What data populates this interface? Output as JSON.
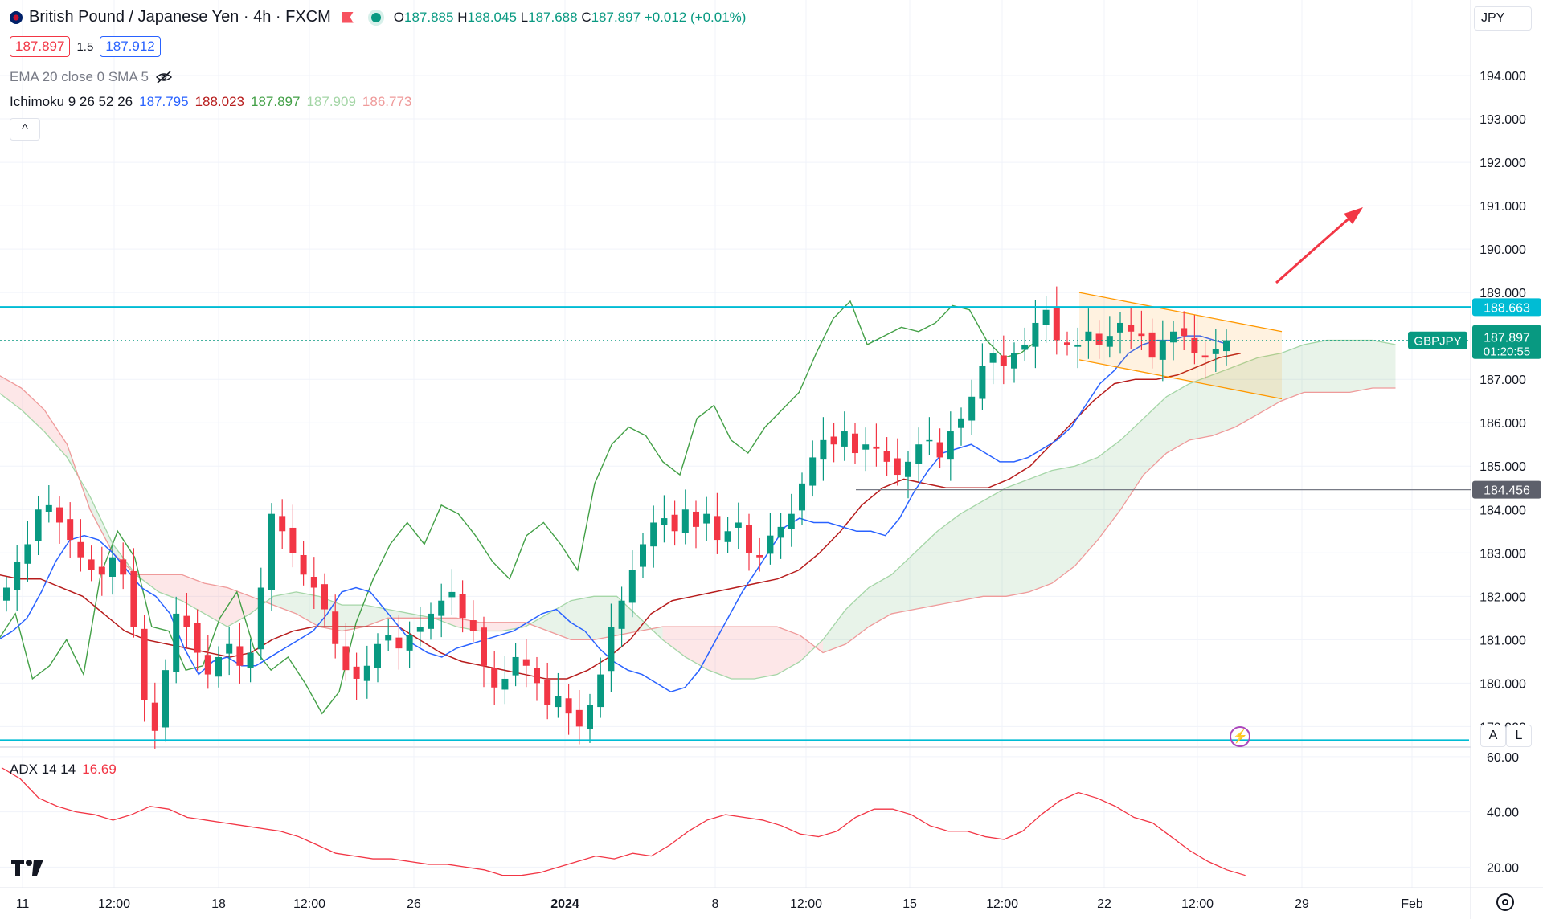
{
  "header": {
    "title": "British Pound / Japanese Yen · 4h · FXCM",
    "ohlc": {
      "o_label": "O",
      "o": "187.885",
      "h_label": "H",
      "h": "188.045",
      "l_label": "L",
      "l": "187.688",
      "c_label": "C",
      "c": "187.897",
      "change": "+0.012 (+0.01%)"
    },
    "bid": "187.897",
    "spread": "1.5",
    "ask": "187.912",
    "currency": "JPY"
  },
  "indicators": {
    "ema": {
      "label": "EMA 20 close 0 SMA 5"
    },
    "ichimoku": {
      "label": "Ichimoku 9 26 52 26",
      "values": [
        "187.795",
        "188.023",
        "187.897",
        "187.909",
        "186.773"
      ]
    },
    "adx": {
      "label": "ADX 14 14",
      "value": "16.69"
    }
  },
  "colors": {
    "tenkan": "#2962ff",
    "kijun": "#b71c1c",
    "chikou": "#43a047",
    "span_a": "#a5d6a7",
    "span_b": "#ef9a9a",
    "bull": "#089981",
    "bear": "#f23645",
    "hline": "#00bcd4",
    "channel": "#ff9800",
    "adx": "#f23645",
    "arrow": "#f23645"
  },
  "chart_data": {
    "type": "candlestick",
    "symbol": "GBPJPY",
    "timeframe": "4h",
    "ylim": [
      178.6,
      195.0
    ],
    "y_ticks": [
      "194.000",
      "193.000",
      "192.000",
      "191.000",
      "190.000",
      "189.000",
      "187.000",
      "186.000",
      "185.000",
      "184.000",
      "183.000",
      "182.000",
      "181.000",
      "180.000",
      "179.000"
    ],
    "x_ticks": [
      "11",
      "12:00",
      "18",
      "12:00",
      "26",
      "2024",
      "8",
      "12:00",
      "15",
      "12:00",
      "22",
      "12:00",
      "29",
      "Feb"
    ],
    "price_label": {
      "symbol": "GBPJPY",
      "price": "187.897",
      "countdown": "01:20:55"
    },
    "horizontal_levels": [
      {
        "value": 188.663,
        "label": "188.663"
      },
      {
        "value": 184.456,
        "label": "184.456"
      },
      {
        "value": 178.68
      }
    ],
    "closes": [
      182.2,
      182.8,
      183.2,
      184.0,
      184.1,
      183.7,
      183.3,
      182.9,
      182.6,
      182.5,
      182.9,
      182.5,
      181.3,
      179.6,
      178.9,
      180.3,
      181.6,
      181.3,
      180.7,
      180.2,
      180.6,
      180.9,
      180.4,
      180.7,
      182.2,
      183.9,
      183.5,
      183.0,
      182.5,
      182.2,
      181.7,
      180.9,
      180.3,
      180.1,
      180.4,
      180.9,
      181.1,
      180.8,
      181.1,
      181.3,
      181.6,
      181.9,
      182.1,
      181.5,
      181.2,
      180.4,
      179.9,
      180.1,
      180.6,
      180.4,
      180.0,
      179.5,
      179.7,
      179.3,
      179.0,
      179.5,
      180.2,
      181.3,
      181.9,
      182.6,
      183.2,
      183.7,
      183.8,
      183.5,
      184.0,
      183.6,
      183.9,
      183.3,
      183.5,
      183.7,
      183.0,
      182.9,
      183.4,
      183.6,
      183.9,
      184.6,
      185.2,
      185.6,
      185.5,
      185.8,
      185.3,
      185.5,
      185.4,
      185.1,
      184.8,
      185.1,
      185.5,
      185.6,
      185.2,
      185.8,
      186.1,
      186.6,
      187.3,
      187.6,
      187.3,
      187.6,
      187.8,
      188.3,
      188.6,
      187.9,
      187.8,
      187.8,
      188.1,
      187.8,
      188.0,
      188.3,
      188.1,
      188.0,
      187.5,
      187.9,
      188.1,
      188.0,
      187.6,
      187.5,
      187.7,
      187.9
    ],
    "ichimoku": {
      "tenkan": [
        181.0,
        181.2,
        181.5,
        182.1,
        182.8,
        183.3,
        183.4,
        183.3,
        183.0,
        182.6,
        182.2,
        182.0,
        181.6,
        180.8,
        180.2,
        180.5,
        180.6,
        180.4,
        180.4,
        180.6,
        180.8,
        181.0,
        181.2,
        181.6,
        182.1,
        182.2,
        182.1,
        181.7,
        181.3,
        180.9,
        180.7,
        180.6,
        180.8,
        180.9,
        181.0,
        181.1,
        181.2,
        181.4,
        181.6,
        181.7,
        181.4,
        181.2,
        180.8,
        180.5,
        180.3,
        180.2,
        180.0,
        179.8,
        179.9,
        180.3,
        180.9,
        181.5,
        182.1,
        182.6,
        183.1,
        183.6,
        183.8,
        183.7,
        183.7,
        183.6,
        183.5,
        183.5,
        183.4,
        183.8,
        184.4,
        184.9,
        185.3,
        185.4,
        185.5,
        185.3,
        185.1,
        185.1,
        185.2,
        185.4,
        185.6,
        185.9,
        186.4,
        186.9,
        187.2,
        187.6,
        187.8,
        187.9,
        187.9,
        188.0,
        188.0,
        187.9,
        187.8
      ],
      "kijun": [
        182.5,
        182.4,
        182.4,
        182.2,
        182.0,
        181.6,
        181.2,
        181.0,
        180.9,
        180.8,
        180.7,
        180.6,
        180.7,
        181.0,
        181.2,
        181.3,
        181.3,
        181.3,
        181.3,
        181.3,
        181.0,
        180.7,
        180.5,
        180.4,
        180.3,
        180.2,
        180.1,
        180.1,
        180.3,
        180.6,
        181.0,
        181.6,
        181.9,
        182.0,
        182.1,
        182.2,
        182.3,
        182.4,
        182.6,
        183.0,
        183.5,
        184.1,
        184.5,
        184.7,
        184.6,
        184.5,
        184.5,
        184.5,
        184.7,
        185.0,
        185.5,
        186.0,
        186.5,
        186.9,
        187.0,
        187.0,
        187.1,
        187.3,
        187.5,
        187.6
      ],
      "span_a": [
        186.7,
        186.3,
        185.8,
        185.2,
        184.3,
        183.2,
        182.5,
        182.1,
        181.9,
        181.6,
        181.3,
        181.6,
        182.0,
        182.1,
        182.0,
        181.8,
        181.8,
        181.7,
        181.6,
        181.5,
        181.3,
        181.2,
        181.2,
        181.3,
        181.6,
        181.9,
        182.0,
        182.0,
        181.5,
        181.0,
        180.6,
        180.3,
        180.1,
        180.1,
        180.2,
        180.5,
        181.0,
        181.7,
        182.2,
        182.5,
        183.0,
        183.5,
        183.9,
        184.2,
        184.5,
        184.7,
        184.9,
        185.0,
        185.2,
        185.6,
        186.1,
        186.6,
        186.9,
        187.1,
        187.3,
        187.5,
        187.6,
        187.8,
        187.9,
        187.9,
        187.9,
        187.8
      ],
      "span_b": [
        187.1,
        186.8,
        186.3,
        185.5,
        184.0,
        183.0,
        182.5,
        182.5,
        182.5,
        182.3,
        182.2,
        182.0,
        181.8,
        181.6,
        181.3,
        181.2,
        181.3,
        181.5,
        181.5,
        181.5,
        181.5,
        181.4,
        181.4,
        181.4,
        181.2,
        181.0,
        181.0,
        181.1,
        181.2,
        181.3,
        181.3,
        181.3,
        181.3,
        181.3,
        181.3,
        181.1,
        180.7,
        180.9,
        181.3,
        181.6,
        181.7,
        181.8,
        181.9,
        182.0,
        182.0,
        182.1,
        182.3,
        182.7,
        183.3,
        184.0,
        184.8,
        185.3,
        185.6,
        185.7,
        185.9,
        186.2,
        186.5,
        186.7,
        186.7,
        186.7,
        186.8,
        186.8
      ],
      "chikou": [
        181.0,
        181.6,
        180.1,
        180.4,
        181.0,
        180.2,
        182.5,
        183.5,
        182.9,
        181.3,
        181.2,
        180.3,
        180.4,
        181.5,
        182.1,
        180.8,
        180.3,
        180.6,
        180.0,
        179.3,
        179.8,
        181.4,
        182.4,
        183.2,
        183.7,
        183.2,
        184.1,
        183.9,
        183.4,
        182.8,
        182.4,
        183.4,
        183.7,
        183.2,
        182.6,
        184.6,
        185.5,
        185.9,
        185.7,
        185.1,
        184.8,
        186.1,
        186.4,
        185.6,
        185.3,
        185.9,
        186.3,
        186.7,
        187.6,
        188.4,
        188.8,
        187.8,
        188.0,
        188.2,
        188.1,
        188.3,
        188.7,
        188.6,
        187.9,
        187.5,
        187.6,
        187.9
      ]
    },
    "adx": {
      "ylim": [
        14,
        62
      ],
      "ticks": [
        "60.00",
        "40.00",
        "20.00"
      ],
      "values": [
        56,
        52,
        45,
        42,
        40,
        39,
        37,
        39,
        42,
        41,
        38,
        37,
        36,
        35,
        34,
        33,
        31,
        28,
        25,
        24,
        23,
        23,
        22,
        21,
        21,
        20,
        19,
        17,
        17,
        18,
        20,
        22,
        24,
        23,
        25,
        24,
        28,
        33,
        37,
        39,
        38,
        37,
        35,
        32,
        31,
        33,
        38,
        41,
        41,
        39,
        35,
        33,
        33,
        31,
        30,
        33,
        39,
        44,
        47,
        45,
        42,
        38,
        36,
        31,
        26,
        22,
        19,
        17
      ]
    },
    "annotations": [
      {
        "type": "arrow",
        "direction": "up-right"
      },
      {
        "type": "descending-channel",
        "color": "#ff9800"
      }
    ]
  },
  "buttons": {
    "collapse": "^",
    "auto": "A",
    "log": "L"
  }
}
